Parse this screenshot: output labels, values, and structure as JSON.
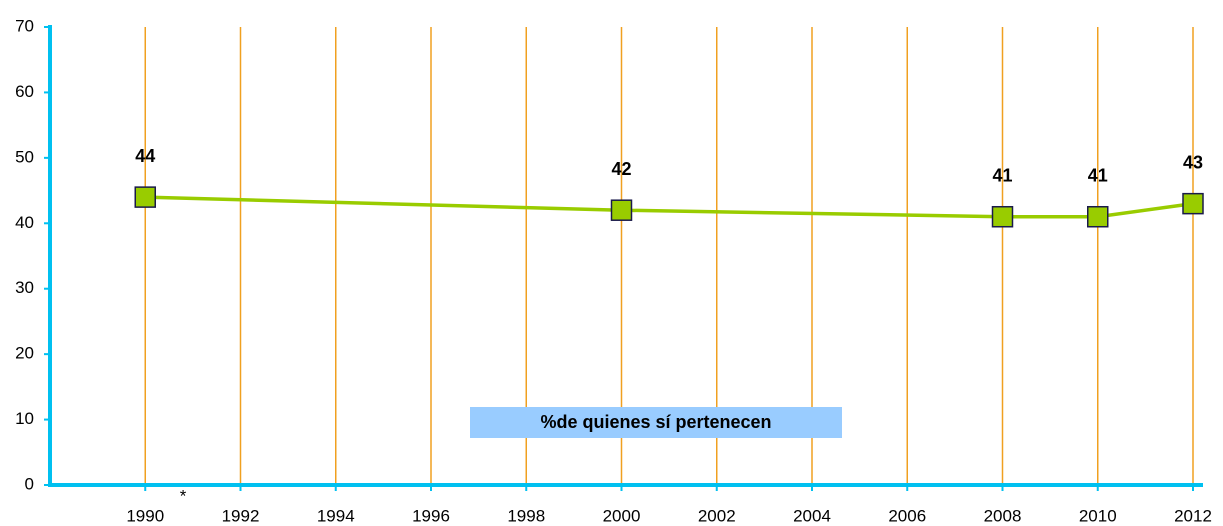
{
  "chart_data": {
    "type": "line",
    "x": [
      1990,
      2000,
      2008,
      2010,
      2012
    ],
    "series": [
      {
        "name": "%de quienes sí pertenecen",
        "color": "#99cc00",
        "values": [
          44,
          42,
          41,
          41,
          43
        ]
      }
    ],
    "xlim": [
      1988,
      2012
    ],
    "xticks": [
      1990,
      1992,
      1994,
      1996,
      1998,
      2000,
      2002,
      2004,
      2006,
      2008,
      2010,
      2012
    ],
    "ylim": [
      0,
      70
    ],
    "yticks": [
      0,
      10,
      20,
      30,
      40,
      50,
      60,
      70
    ],
    "grid": true,
    "grid_color": "#f0a020",
    "axis_color": "#00c0f0",
    "annotations": [
      "*"
    ]
  }
}
